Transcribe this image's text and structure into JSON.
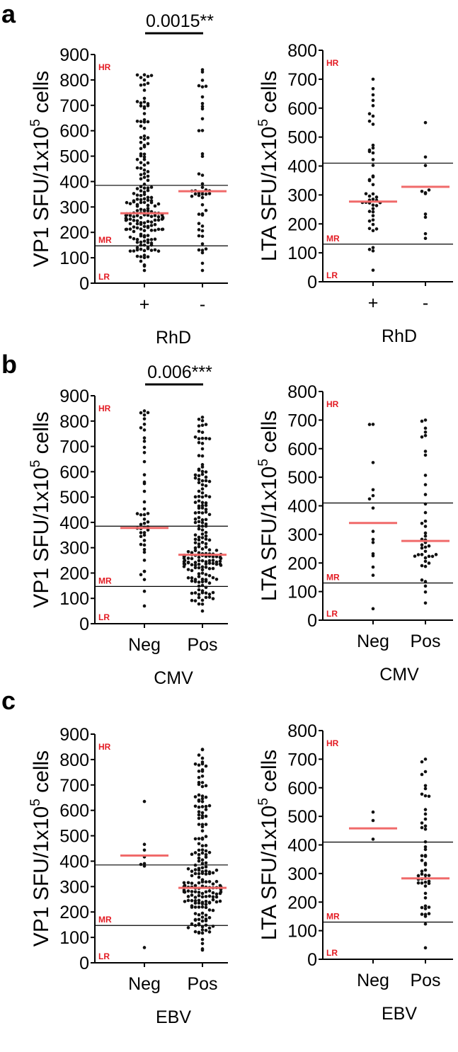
{
  "colors": {
    "median": "#f06a6a",
    "risk_text": "#e31b23",
    "axis": "#000000",
    "points": "#111111"
  },
  "risk_labels": {
    "high": "HR",
    "mid": "MR",
    "low": "LR"
  },
  "chart_data": [
    {
      "id": "a-vp1",
      "panel": "a",
      "type": "scatter",
      "ylabel_prefix": "VP1 SFU/1x10",
      "ylabel_sup": "5",
      "ylabel_suffix": " cells",
      "ylim": [
        0,
        900
      ],
      "yticks": [
        "0",
        "100",
        "200",
        "300",
        "400",
        "500",
        "600",
        "700",
        "800",
        "900"
      ],
      "xlabel": "RhD",
      "categories": [
        "+",
        "-"
      ],
      "medians": [
        275,
        362
      ],
      "thresholds": {
        "high": 385,
        "low": 147
      },
      "significance": {
        "label": "0.0015**"
      },
      "n": [
        190,
        50
      ],
      "y_min": [
        50,
        50
      ],
      "y_max": [
        820,
        840
      ]
    },
    {
      "id": "a-lta",
      "panel": null,
      "type": "scatter",
      "ylabel_prefix": "LTA SFU/1x10",
      "ylabel_sup": "5",
      "ylabel_suffix": " cells",
      "ylim": [
        0,
        800
      ],
      "yticks": [
        "0",
        "100",
        "200",
        "300",
        "400",
        "500",
        "600",
        "700",
        "800"
      ],
      "xlabel": "RhD",
      "categories": [
        "+",
        "-"
      ],
      "medians": [
        277,
        328
      ],
      "thresholds": {
        "high": 410,
        "low": 130
      },
      "significance": null,
      "n": [
        48,
        11
      ],
      "y_min": [
        40,
        150
      ],
      "y_max": [
        700,
        550
      ]
    },
    {
      "id": "b-vp1",
      "panel": "b",
      "type": "scatter",
      "ylabel_prefix": "VP1 SFU/1x10",
      "ylabel_sup": "5",
      "ylabel_suffix": " cells",
      "ylim": [
        0,
        900
      ],
      "yticks": [
        "0",
        "100",
        "200",
        "300",
        "400",
        "500",
        "600",
        "700",
        "800",
        "900"
      ],
      "xlabel": "CMV",
      "categories": [
        "Neg",
        "Pos"
      ],
      "medians": [
        378,
        272
      ],
      "thresholds": {
        "high": 385,
        "low": 147
      },
      "significance": {
        "label": "0.006***"
      },
      "n": [
        48,
        190
      ],
      "y_min": [
        70,
        50
      ],
      "y_max": [
        840,
        815
      ]
    },
    {
      "id": "b-lta",
      "panel": null,
      "type": "scatter",
      "ylabel_prefix": "LTA SFU/1x10",
      "ylabel_sup": "5",
      "ylabel_suffix": " cells",
      "ylim": [
        0,
        800
      ],
      "yticks": [
        "0",
        "100",
        "200",
        "300",
        "400",
        "500",
        "600",
        "700",
        "800"
      ],
      "xlabel": "CMV",
      "categories": [
        "Neg",
        "Pos"
      ],
      "medians": [
        340,
        277
      ],
      "thresholds": {
        "high": 410,
        "low": 130
      },
      "significance": null,
      "n": [
        15,
        42
      ],
      "y_min": [
        40,
        60
      ],
      "y_max": [
        685,
        700
      ]
    },
    {
      "id": "c-vp1",
      "panel": "c",
      "type": "scatter",
      "ylabel_prefix": "VP1 SFU/1x10",
      "ylabel_sup": "5",
      "ylabel_suffix": " cells",
      "ylim": [
        0,
        900
      ],
      "yticks": [
        "0",
        "100",
        "200",
        "300",
        "400",
        "500",
        "600",
        "700",
        "800",
        "900"
      ],
      "xlabel": "EBV",
      "categories": [
        "Neg",
        "Pos"
      ],
      "medians": [
        422,
        295
      ],
      "thresholds": {
        "high": 385,
        "low": 147
      },
      "significance": null,
      "n": [
        8,
        200
      ],
      "y_min": [
        60,
        50
      ],
      "y_max": [
        635,
        840
      ]
    },
    {
      "id": "c-lta",
      "panel": null,
      "type": "scatter",
      "ylabel_prefix": "LTA SFU/1x10",
      "ylabel_sup": "5",
      "ylabel_suffix": " cells",
      "ylim": [
        0,
        800
      ],
      "yticks": [
        "0",
        "100",
        "200",
        "300",
        "400",
        "500",
        "600",
        "700",
        "800"
      ],
      "xlabel": "EBV",
      "categories": [
        "Neg",
        "Pos"
      ],
      "medians": [
        458,
        283
      ],
      "thresholds": {
        "high": 410,
        "low": 130
      },
      "significance": null,
      "n": [
        3,
        52
      ],
      "y_min": [
        420,
        40
      ],
      "y_max": [
        515,
        700
      ]
    }
  ]
}
